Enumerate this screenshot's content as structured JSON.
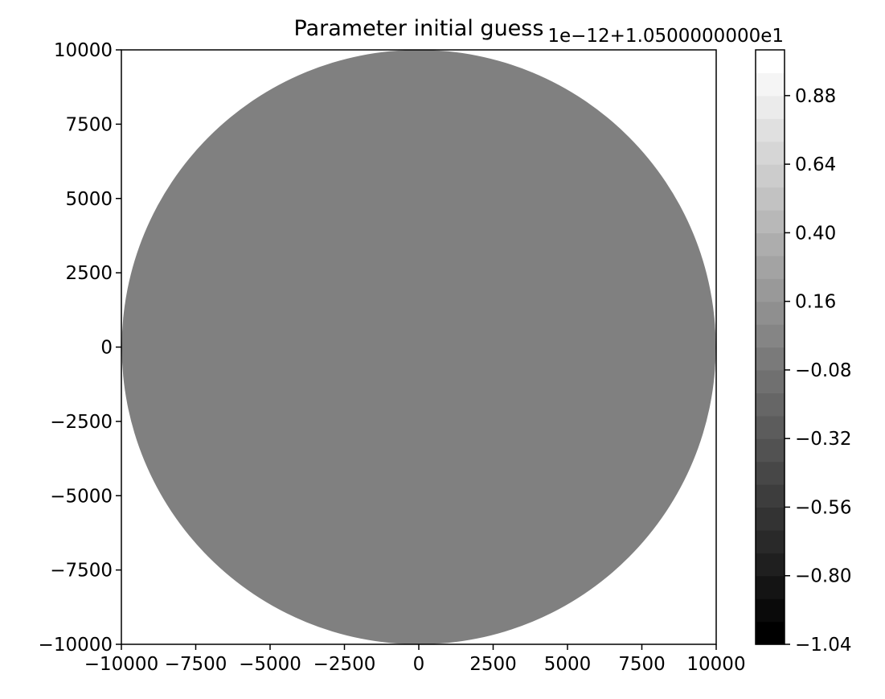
{
  "chart_data": {
    "type": "heatmap",
    "title": "Parameter initial guess",
    "xlabel": "",
    "ylabel": "",
    "xlim": [
      -10000,
      10000
    ],
    "ylim": [
      -10000,
      10000
    ],
    "x_ticks": [
      -10000,
      -7500,
      -5000,
      -2500,
      0,
      2500,
      5000,
      7500,
      10000
    ],
    "x_tick_labels": [
      "−10000",
      "−7500",
      "−5000",
      "−2500",
      "0",
      "2500",
      "5000",
      "7500",
      "10000"
    ],
    "y_ticks": [
      -10000,
      -7500,
      -5000,
      -2500,
      0,
      2500,
      5000,
      7500,
      10000
    ],
    "y_tick_labels": [
      "−10000",
      "−7500",
      "−5000",
      "−2500",
      "0",
      "2500",
      "5000",
      "7500",
      "10000"
    ],
    "grid": false,
    "field": {
      "shape": "circle",
      "center": [
        0,
        0
      ],
      "radius": 10000,
      "value": 0,
      "color": "#808080"
    },
    "colorbar": {
      "colormap": "gray",
      "range": [
        -1.04,
        1.04
      ],
      "levels": 26,
      "offset_label": "1e−12+1.0500000000e1",
      "ticks": [
        0.88,
        0.64,
        0.4,
        0.16,
        -0.08,
        -0.32,
        -0.56,
        -0.8,
        -1.04
      ],
      "tick_labels": [
        "0.88",
        "0.64",
        "0.40",
        "0.16",
        "−0.08",
        "−0.32",
        "−0.56",
        "−0.80",
        "−1.04"
      ]
    }
  }
}
